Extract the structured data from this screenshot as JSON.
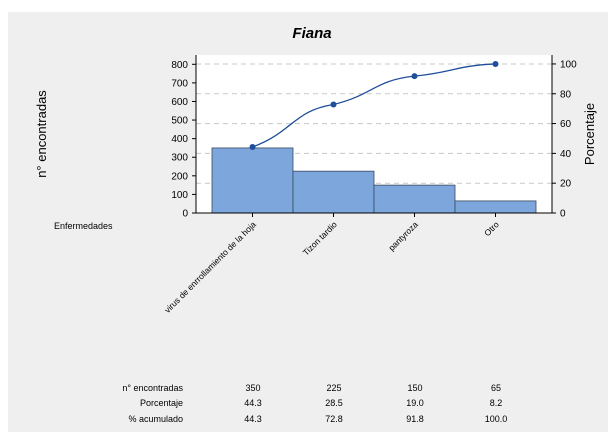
{
  "chart_data": {
    "type": "bar",
    "title": "Fiana",
    "xlabel": "Enfermedades",
    "ylabel": "n° encontradas",
    "y2label": "Porcentaje",
    "categories": [
      "virus de enrrollamiento de la hoja",
      "Tizon tardio",
      "pantyroza",
      "Otro"
    ],
    "values": [
      350,
      225,
      150,
      65
    ],
    "cumulative_percent": [
      44.3,
      72.8,
      91.8,
      100.0
    ],
    "ylim": [
      0,
      850
    ],
    "y2lim": [
      0,
      106
    ],
    "yticks": [
      0,
      100,
      200,
      300,
      400,
      500,
      600,
      700,
      800
    ],
    "y2ticks": [
      0,
      20,
      40,
      60,
      80,
      100
    ],
    "grid": true,
    "bar_color": "#7ca6dc",
    "line_color": "#1f4e9a",
    "table": {
      "row_labels": [
        "n° encontradas",
        "Porcentaje",
        "% acumulado"
      ],
      "rows": [
        [
          "350",
          "225",
          "150",
          "65"
        ],
        [
          "44.3",
          "28.5",
          "19.0",
          "8.2"
        ],
        [
          "44.3",
          "72.8",
          "91.8",
          "100.0"
        ]
      ]
    }
  }
}
